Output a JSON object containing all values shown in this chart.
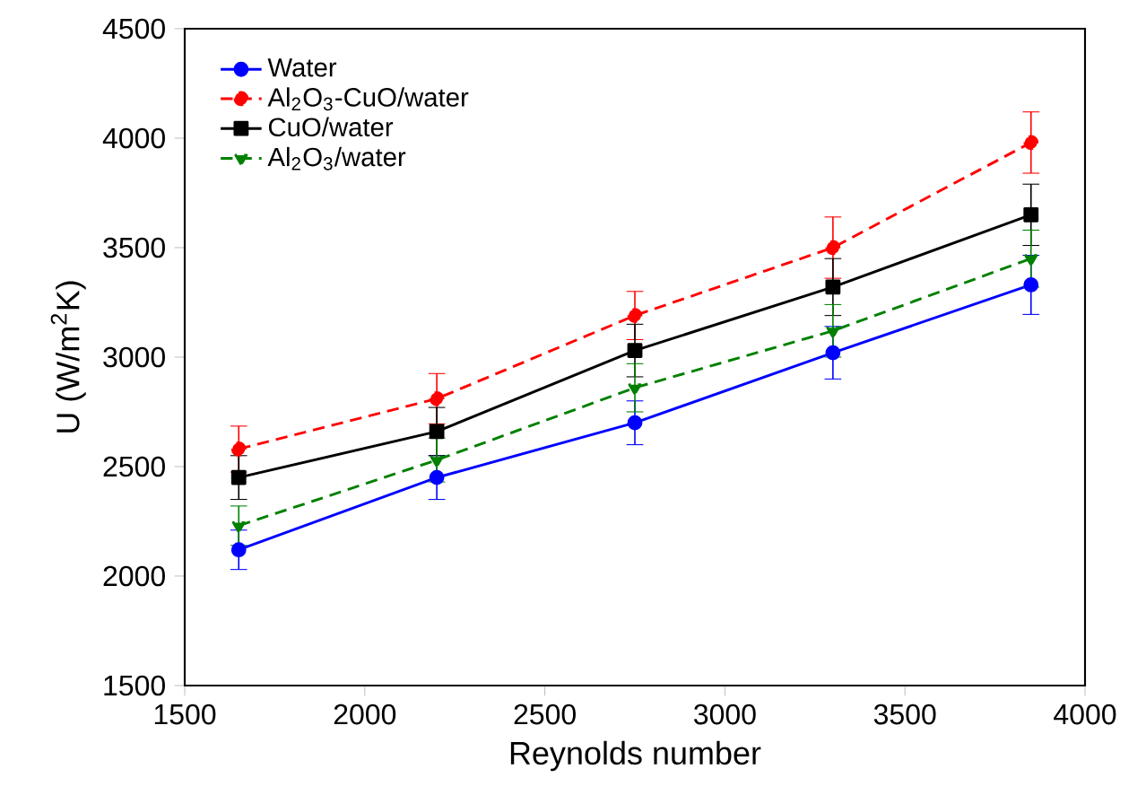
{
  "chart_data": {
    "type": "line",
    "xlabel": "Reynolds number",
    "ylabel": "U (W/m$^{2}$K)",
    "x": [
      1650,
      2200,
      2750,
      3300,
      3850
    ],
    "series": [
      {
        "name": "Water",
        "color": "#0000ff",
        "marker": "circle",
        "line_style": "solid",
        "values": [
          2120,
          2450,
          2700,
          3020,
          3330
        ],
        "errors": [
          90,
          100,
          100,
          120,
          135
        ]
      },
      {
        "name": "Al$_{2}$O$_{3}$-CuO/water",
        "color": "#ff0000",
        "marker": "circle",
        "line_style": "dashed",
        "values": [
          2580,
          2810,
          3190,
          3500,
          3980
        ],
        "errors": [
          105,
          115,
          110,
          140,
          140
        ]
      },
      {
        "name": "CuO/water",
        "color": "#000000",
        "marker": "square",
        "line_style": "solid",
        "values": [
          2450,
          2660,
          3030,
          3320,
          3650
        ],
        "errors": [
          100,
          110,
          120,
          130,
          140
        ]
      },
      {
        "name": "Al$_{2}$O$_{3}$/water",
        "color": "#008000",
        "marker": "triangle",
        "line_style": "dashed",
        "values": [
          2230,
          2530,
          2860,
          3120,
          3450
        ],
        "errors": [
          90,
          100,
          110,
          120,
          130
        ]
      }
    ],
    "xlim": [
      1500,
      4000
    ],
    "xticks": [
      1500,
      2000,
      2500,
      3000,
      3500,
      4000
    ],
    "ylim": [
      1500,
      4500
    ],
    "yticks": [
      1500,
      2000,
      2500,
      3000,
      3500,
      4000,
      4500
    ],
    "grid": false,
    "legend": "top left"
  }
}
